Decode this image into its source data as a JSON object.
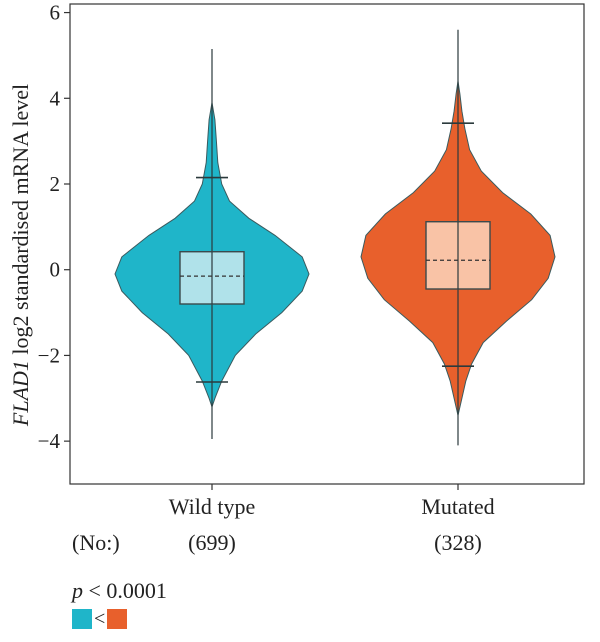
{
  "chart_data": {
    "type": "violin",
    "ylabel_gene": "FLAD1",
    "ylabel_rest": " log2 standardised mRNA level",
    "ylim": [
      -5,
      6.2
    ],
    "yticks": [
      6,
      4,
      2,
      0,
      -2,
      -4
    ],
    "count_prefix": "(No:)",
    "groups": [
      {
        "name": "Wild type",
        "count_label": "(699)",
        "color": "#1fb5c9",
        "box_color": "#b0e2ea",
        "q1": -0.8,
        "median": -0.15,
        "q3": 0.42,
        "whisker_low": -2.62,
        "whisker_high": 2.15,
        "min": -3.95,
        "max": 5.15,
        "density": [
          [
            -3.2,
            0.0
          ],
          [
            -3.0,
            0.03
          ],
          [
            -2.6,
            0.1
          ],
          [
            -2.0,
            0.24
          ],
          [
            -1.5,
            0.45
          ],
          [
            -1.0,
            0.72
          ],
          [
            -0.5,
            0.93
          ],
          [
            -0.1,
            1.0
          ],
          [
            0.3,
            0.93
          ],
          [
            0.8,
            0.65
          ],
          [
            1.2,
            0.38
          ],
          [
            1.6,
            0.18
          ],
          [
            2.0,
            0.1
          ],
          [
            2.5,
            0.06
          ],
          [
            3.0,
            0.045
          ],
          [
            3.5,
            0.03
          ],
          [
            3.9,
            0.0
          ]
        ]
      },
      {
        "name": "Mutated",
        "count_label": "(328)",
        "color": "#e8602c",
        "box_color": "#f9c3a6",
        "q1": -0.45,
        "median": 0.22,
        "q3": 1.12,
        "whisker_low": -2.25,
        "whisker_high": 3.42,
        "min": -4.1,
        "max": 5.6,
        "density": [
          [
            -3.4,
            0.0
          ],
          [
            -3.0,
            0.04
          ],
          [
            -2.6,
            0.08
          ],
          [
            -2.2,
            0.14
          ],
          [
            -1.7,
            0.26
          ],
          [
            -1.2,
            0.5
          ],
          [
            -0.7,
            0.76
          ],
          [
            -0.2,
            0.93
          ],
          [
            0.3,
            1.0
          ],
          [
            0.8,
            0.95
          ],
          [
            1.3,
            0.75
          ],
          [
            1.8,
            0.46
          ],
          [
            2.3,
            0.24
          ],
          [
            2.8,
            0.12
          ],
          [
            3.3,
            0.07
          ],
          [
            3.7,
            0.04
          ],
          [
            4.1,
            0.02
          ],
          [
            4.4,
            0.0
          ]
        ]
      }
    ]
  },
  "legend": {
    "p_symbol": "p",
    "p_text": " < 0.0001",
    "left_color": "#1fb5c9",
    "comparator": "<",
    "right_color": "#e8602c"
  }
}
